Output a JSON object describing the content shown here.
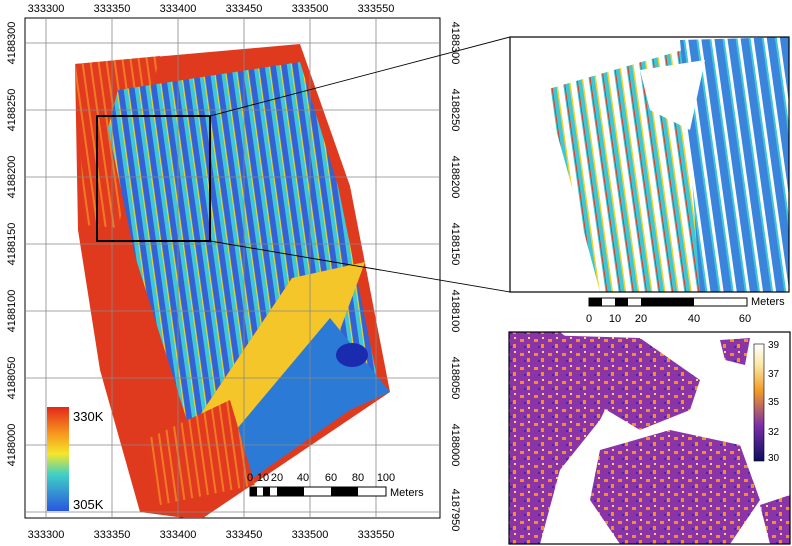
{
  "main_map": {
    "x_ticks": [
      "333300",
      "333350",
      "333400",
      "333450",
      "333500",
      "333550"
    ],
    "y_ticks": [
      "4188300",
      "4188250",
      "4188200",
      "4188150",
      "4188100",
      "4188050",
      "4188000",
      "4187950"
    ],
    "legend": {
      "top_label": "330K",
      "bottom_label": "305K"
    },
    "scale_bar": {
      "ticks": [
        "0",
        "10",
        "20",
        "40",
        "60",
        "80",
        "100"
      ],
      "unit": "Meters"
    }
  },
  "inset_zoom": {
    "scale_bar": {
      "ticks": [
        "0",
        "10",
        "20",
        "40",
        "60"
      ],
      "unit": "Meters"
    }
  },
  "inset_temp": {
    "colorbar": {
      "ticks": [
        "39",
        "37",
        "35",
        "32",
        "30"
      ]
    }
  },
  "colors": {
    "hot": "#e8331c",
    "warm": "#f7d21e",
    "mid": "#34c6d6",
    "cool": "#2b55d9",
    "purple": "#7a2ea8",
    "orange": "#f5901e"
  }
}
